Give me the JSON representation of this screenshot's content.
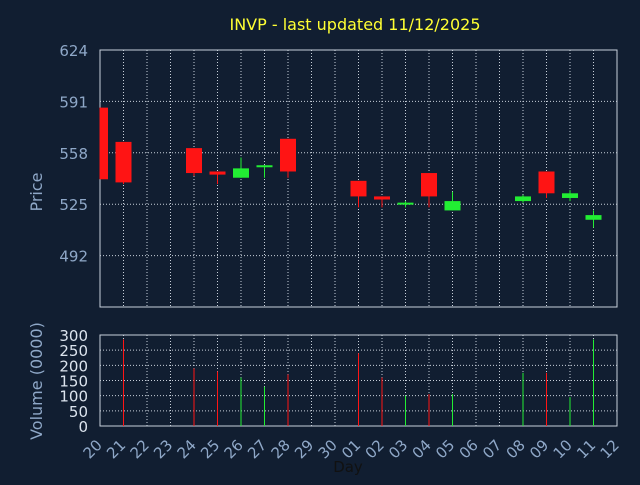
{
  "chart_data": {
    "type": "candlestick",
    "title": "INVP - last updated 11/12/2025",
    "xlabel": "Day",
    "ylabel_price": "Price",
    "ylabel_volume": "Volume (0000)",
    "x_ticks": [
      "20",
      "21",
      "22",
      "23",
      "24",
      "25",
      "26",
      "27",
      "28",
      "29",
      "30",
      "01",
      "02",
      "03",
      "04",
      "05",
      "06",
      "07",
      "08",
      "09",
      "10",
      "11",
      "12"
    ],
    "price_axis": {
      "ylim": [
        459,
        624
      ],
      "ticks": [
        492,
        525,
        558,
        591,
        624
      ]
    },
    "volume_axis": {
      "ylim": [
        0,
        300
      ],
      "ticks": [
        0,
        50,
        100,
        150,
        200,
        250,
        300
      ]
    },
    "grid": true,
    "colors": {
      "background": "#111e31",
      "up": "#22ee33",
      "down": "#ff1414",
      "title": "#ffff33",
      "axis_text": "#8fa8c8",
      "tick_text": "#dce4ee",
      "grid": "#c8d0da"
    },
    "candles": [
      {
        "day": "20",
        "open": 587,
        "high": 587,
        "low": 541,
        "close": 541,
        "volume": 0
      },
      {
        "day": "21",
        "open": 565,
        "high": 565,
        "low": 538,
        "close": 539,
        "volume": 285
      },
      {
        "day": "24",
        "open": 561,
        "high": 561,
        "low": 543,
        "close": 545,
        "volume": 190
      },
      {
        "day": "25",
        "open": 546,
        "high": 546,
        "low": 538,
        "close": 544,
        "volume": 180
      },
      {
        "day": "26",
        "open": 542,
        "high": 555,
        "low": 542,
        "close": 548,
        "volume": 160
      },
      {
        "day": "27",
        "open": 549,
        "high": 550,
        "low": 542,
        "close": 550,
        "volume": 130
      },
      {
        "day": "28",
        "open": 567,
        "high": 567,
        "low": 542,
        "close": 546,
        "volume": 170
      },
      {
        "day": "01",
        "open": 540,
        "high": 540,
        "low": 523,
        "close": 530,
        "volume": 240
      },
      {
        "day": "02",
        "open": 530,
        "high": 530,
        "low": 523,
        "close": 528,
        "volume": 160
      },
      {
        "day": "03",
        "open": 525,
        "high": 527,
        "low": 523,
        "close": 526,
        "volume": 100
      },
      {
        "day": "04",
        "open": 545,
        "high": 545,
        "low": 523,
        "close": 530,
        "volume": 105
      },
      {
        "day": "05",
        "open": 521,
        "high": 533,
        "low": 521,
        "close": 527,
        "volume": 105
      },
      {
        "day": "08",
        "open": 527,
        "high": 531,
        "low": 526,
        "close": 530,
        "volume": 175
      },
      {
        "day": "09",
        "open": 546,
        "high": 546,
        "low": 529,
        "close": 532,
        "volume": 175
      },
      {
        "day": "10",
        "open": 529,
        "high": 534,
        "low": 527,
        "close": 532,
        "volume": 95
      },
      {
        "day": "11",
        "open": 515,
        "high": 521,
        "low": 510,
        "close": 518,
        "volume": 285
      }
    ]
  }
}
